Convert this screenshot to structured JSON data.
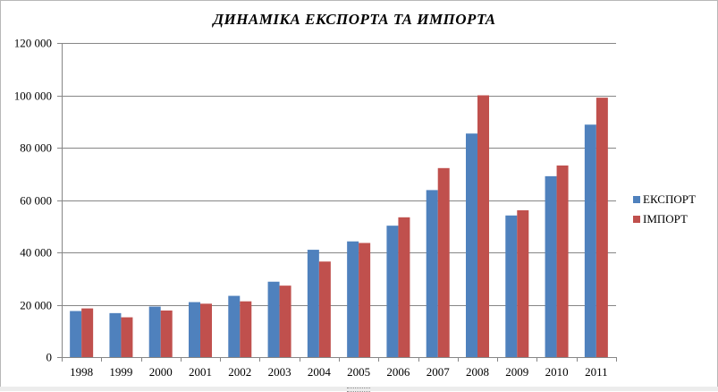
{
  "chart_data": {
    "type": "bar",
    "title": "ДИНАМІКА  ЕКСПОРТА  ТА  ИМПОРТА",
    "categories": [
      "1998",
      "1999",
      "2000",
      "2001",
      "2002",
      "2003",
      "2004",
      "2005",
      "2006",
      "2007",
      "2008",
      "2009",
      "2010",
      "2011"
    ],
    "series": [
      {
        "name": "ЕКСПОРТ",
        "color": "#4f81bd",
        "values": [
          17600,
          16800,
          19300,
          21000,
          23400,
          28800,
          41000,
          44200,
          50200,
          63800,
          85400,
          54100,
          69100,
          88800
        ]
      },
      {
        "name": "ІМПОРТ",
        "color": "#c0504d",
        "values": [
          18600,
          15200,
          17800,
          20400,
          21300,
          27300,
          36500,
          43600,
          53400,
          72200,
          100000,
          56100,
          73200,
          99100
        ]
      }
    ],
    "ylim": [
      0,
      120000
    ],
    "yticks": [
      "0",
      "20 000",
      "40 000",
      "60 000",
      "80 000",
      "100 000",
      "120 000"
    ],
    "xlabel": "",
    "ylabel": "",
    "grid": true,
    "legend": "right"
  }
}
